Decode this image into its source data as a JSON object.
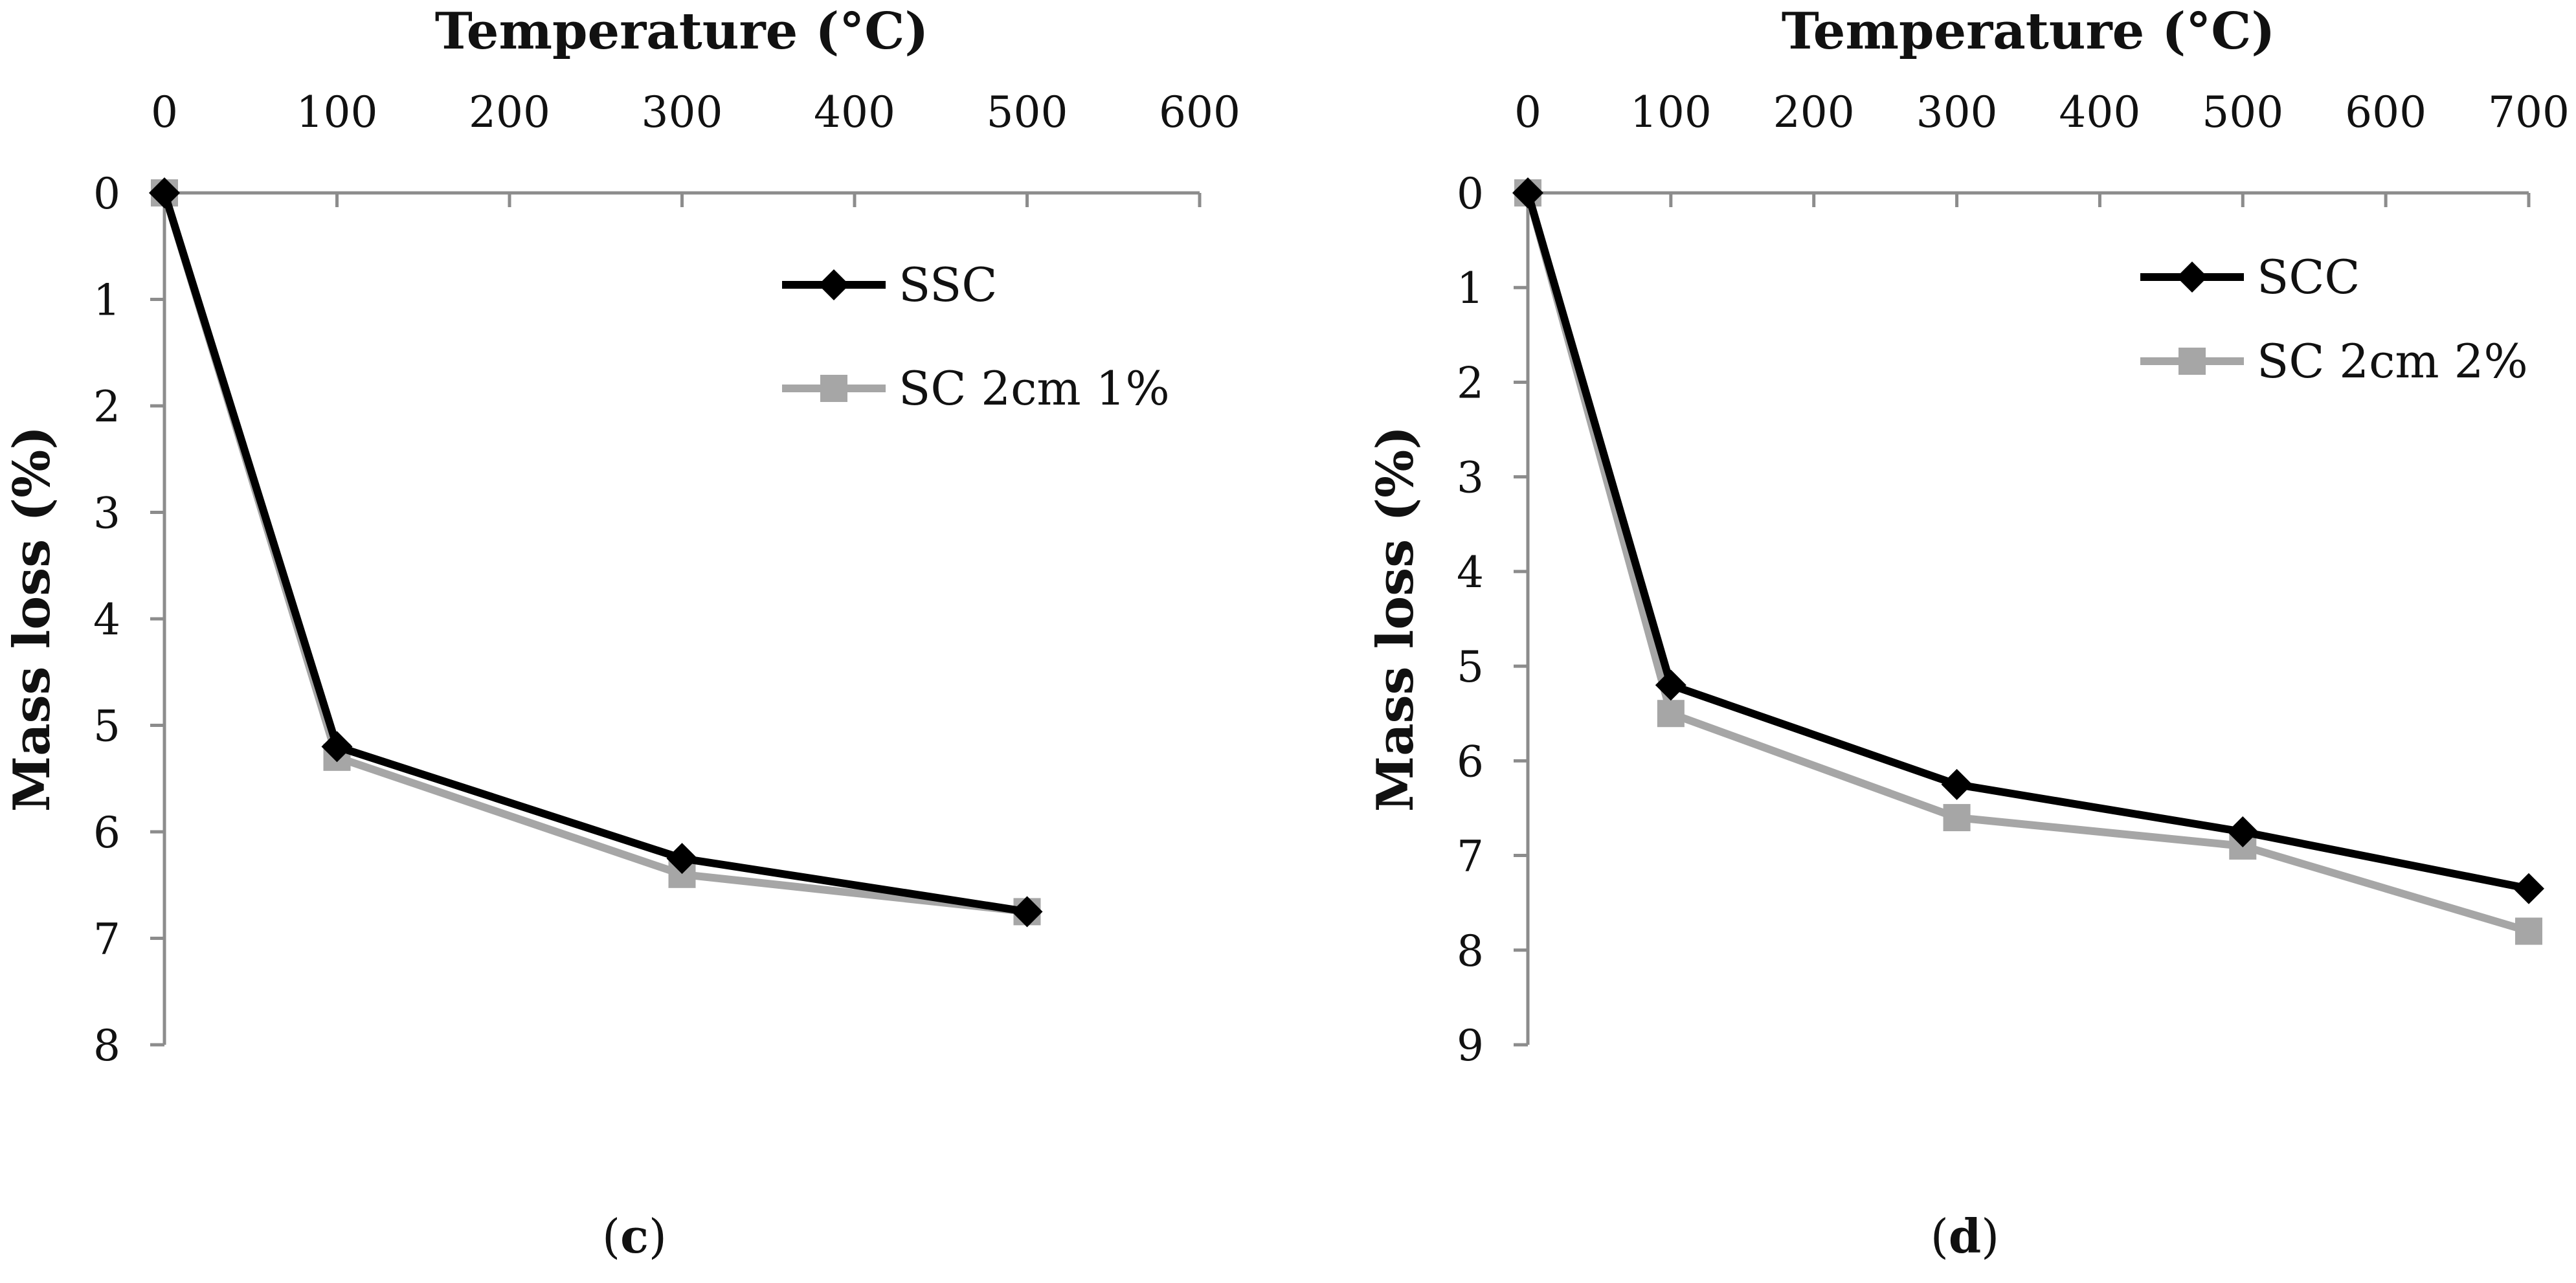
{
  "figure": {
    "panels": [
      "(c)",
      "(d)"
    ]
  },
  "chart_data": [
    {
      "type": "line",
      "panel_label": "c",
      "xlabel": "Temperature (°C)",
      "ylabel": "Mass loss (%)",
      "x_axis_position": "top",
      "y_axis_inverted": true,
      "xlim": [
        0,
        600
      ],
      "ylim": [
        0,
        8
      ],
      "xticks": [
        0,
        100,
        200,
        300,
        400,
        500,
        600
      ],
      "yticks": [
        0,
        1,
        2,
        3,
        4,
        5,
        6,
        7,
        8
      ],
      "x": [
        0,
        100,
        300,
        500
      ],
      "series": [
        {
          "name": "SSC",
          "color": "#000000",
          "marker": "diamond",
          "values": [
            0,
            5.2,
            6.25,
            6.75
          ]
        },
        {
          "name": "SC 2cm 1%",
          "color": "#a6a6a6",
          "marker": "square",
          "values": [
            0,
            5.3,
            6.4,
            6.75
          ]
        }
      ],
      "legend_position": "top-right",
      "grid": false
    },
    {
      "type": "line",
      "panel_label": "d",
      "xlabel": "Temperature (°C)",
      "ylabel": "Mass loss (%)",
      "x_axis_position": "top",
      "y_axis_inverted": true,
      "xlim": [
        0,
        700
      ],
      "ylim": [
        0,
        9
      ],
      "xticks": [
        0,
        100,
        200,
        300,
        400,
        500,
        600,
        700
      ],
      "yticks": [
        0,
        1,
        2,
        3,
        4,
        5,
        6,
        7,
        8,
        9
      ],
      "x": [
        0,
        100,
        300,
        500,
        700
      ],
      "series": [
        {
          "name": "SCC",
          "color": "#000000",
          "marker": "diamond",
          "values": [
            0,
            5.2,
            6.25,
            6.75,
            7.35
          ]
        },
        {
          "name": "SC  2cm 2%",
          "color": "#a6a6a6",
          "marker": "square",
          "values": [
            0,
            5.5,
            6.6,
            6.9,
            7.8
          ]
        }
      ],
      "legend_position": "top-right",
      "grid": false
    }
  ]
}
